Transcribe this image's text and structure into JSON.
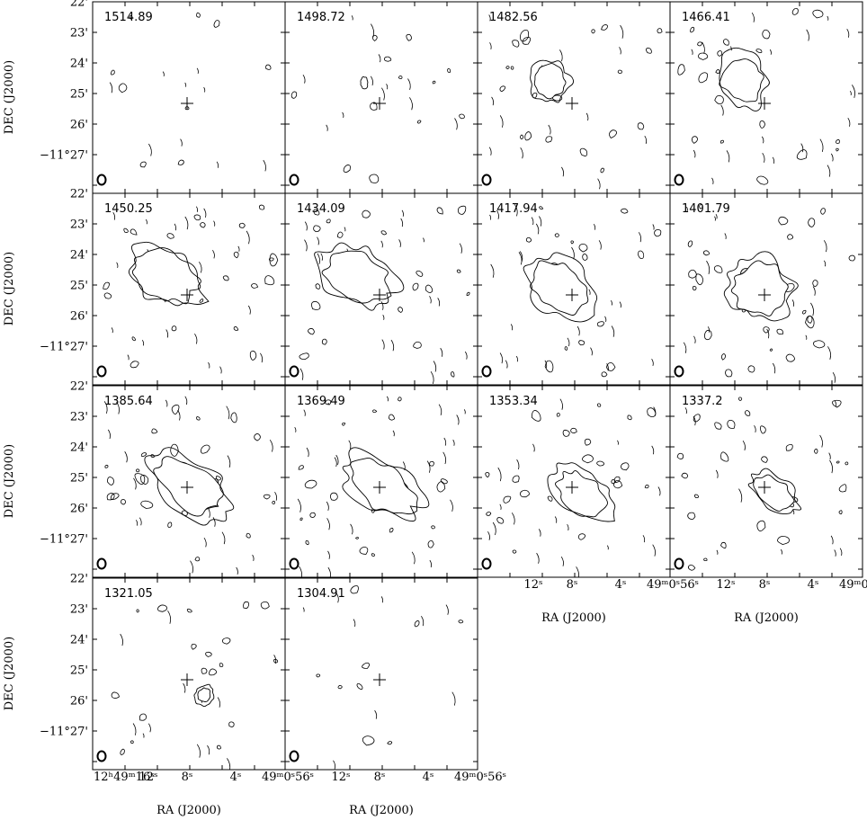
{
  "channels": [
    {
      "velocity": "1514.89",
      "level": 0,
      "src": null
    },
    {
      "velocity": "1498.72",
      "level": 1,
      "src": "blob-a"
    },
    {
      "velocity": "1482.56",
      "level": 3,
      "src": "blob-b"
    },
    {
      "velocity": "1466.41",
      "level": 4,
      "src": "blob-b"
    },
    {
      "velocity": "1450.25",
      "level": 5,
      "src": "blob-c"
    },
    {
      "velocity": "1434.09",
      "level": 5,
      "src": "blob-c"
    },
    {
      "velocity": "1417.94",
      "level": 5,
      "src": "blob-d"
    },
    {
      "velocity": "1401.79",
      "level": 5,
      "src": "blob-e"
    },
    {
      "velocity": "1385.64",
      "level": 5,
      "src": "blob-f"
    },
    {
      "velocity": "1369.49",
      "level": 5,
      "src": "blob-f"
    },
    {
      "velocity": "1353.34",
      "level": 5,
      "src": "blob-g"
    },
    {
      "velocity": "1337.2",
      "level": 4,
      "src": "blob-g"
    },
    {
      "velocity": "1321.05",
      "level": 2,
      "src": "blob-h"
    },
    {
      "velocity": "1304.91",
      "level": 0,
      "src": null
    }
  ],
  "dec_axis": {
    "label": "DEC (J2000)",
    "ticks": [
      "22'",
      "23'",
      "24'",
      "25'",
      "26'",
      "−11°27'"
    ]
  },
  "ra_axis": {
    "label": "RA (J2000)",
    "ticks_full": [
      "12ʰ49ᵐ16ˢ",
      "12ˢ",
      "8ˢ",
      "4ˢ",
      "49ᵐ0ˢ56ˢ"
    ],
    "ticks_short": [
      "12ˢ",
      "8ˢ",
      "4ˢ",
      "49ᵐ0ˢ56ˢ"
    ]
  },
  "colors": {
    "contour": "#000000",
    "fill_low": "#e6e6e6",
    "fill_mid": "#c4c4c4",
    "fill_high": "#9a9a9a"
  }
}
